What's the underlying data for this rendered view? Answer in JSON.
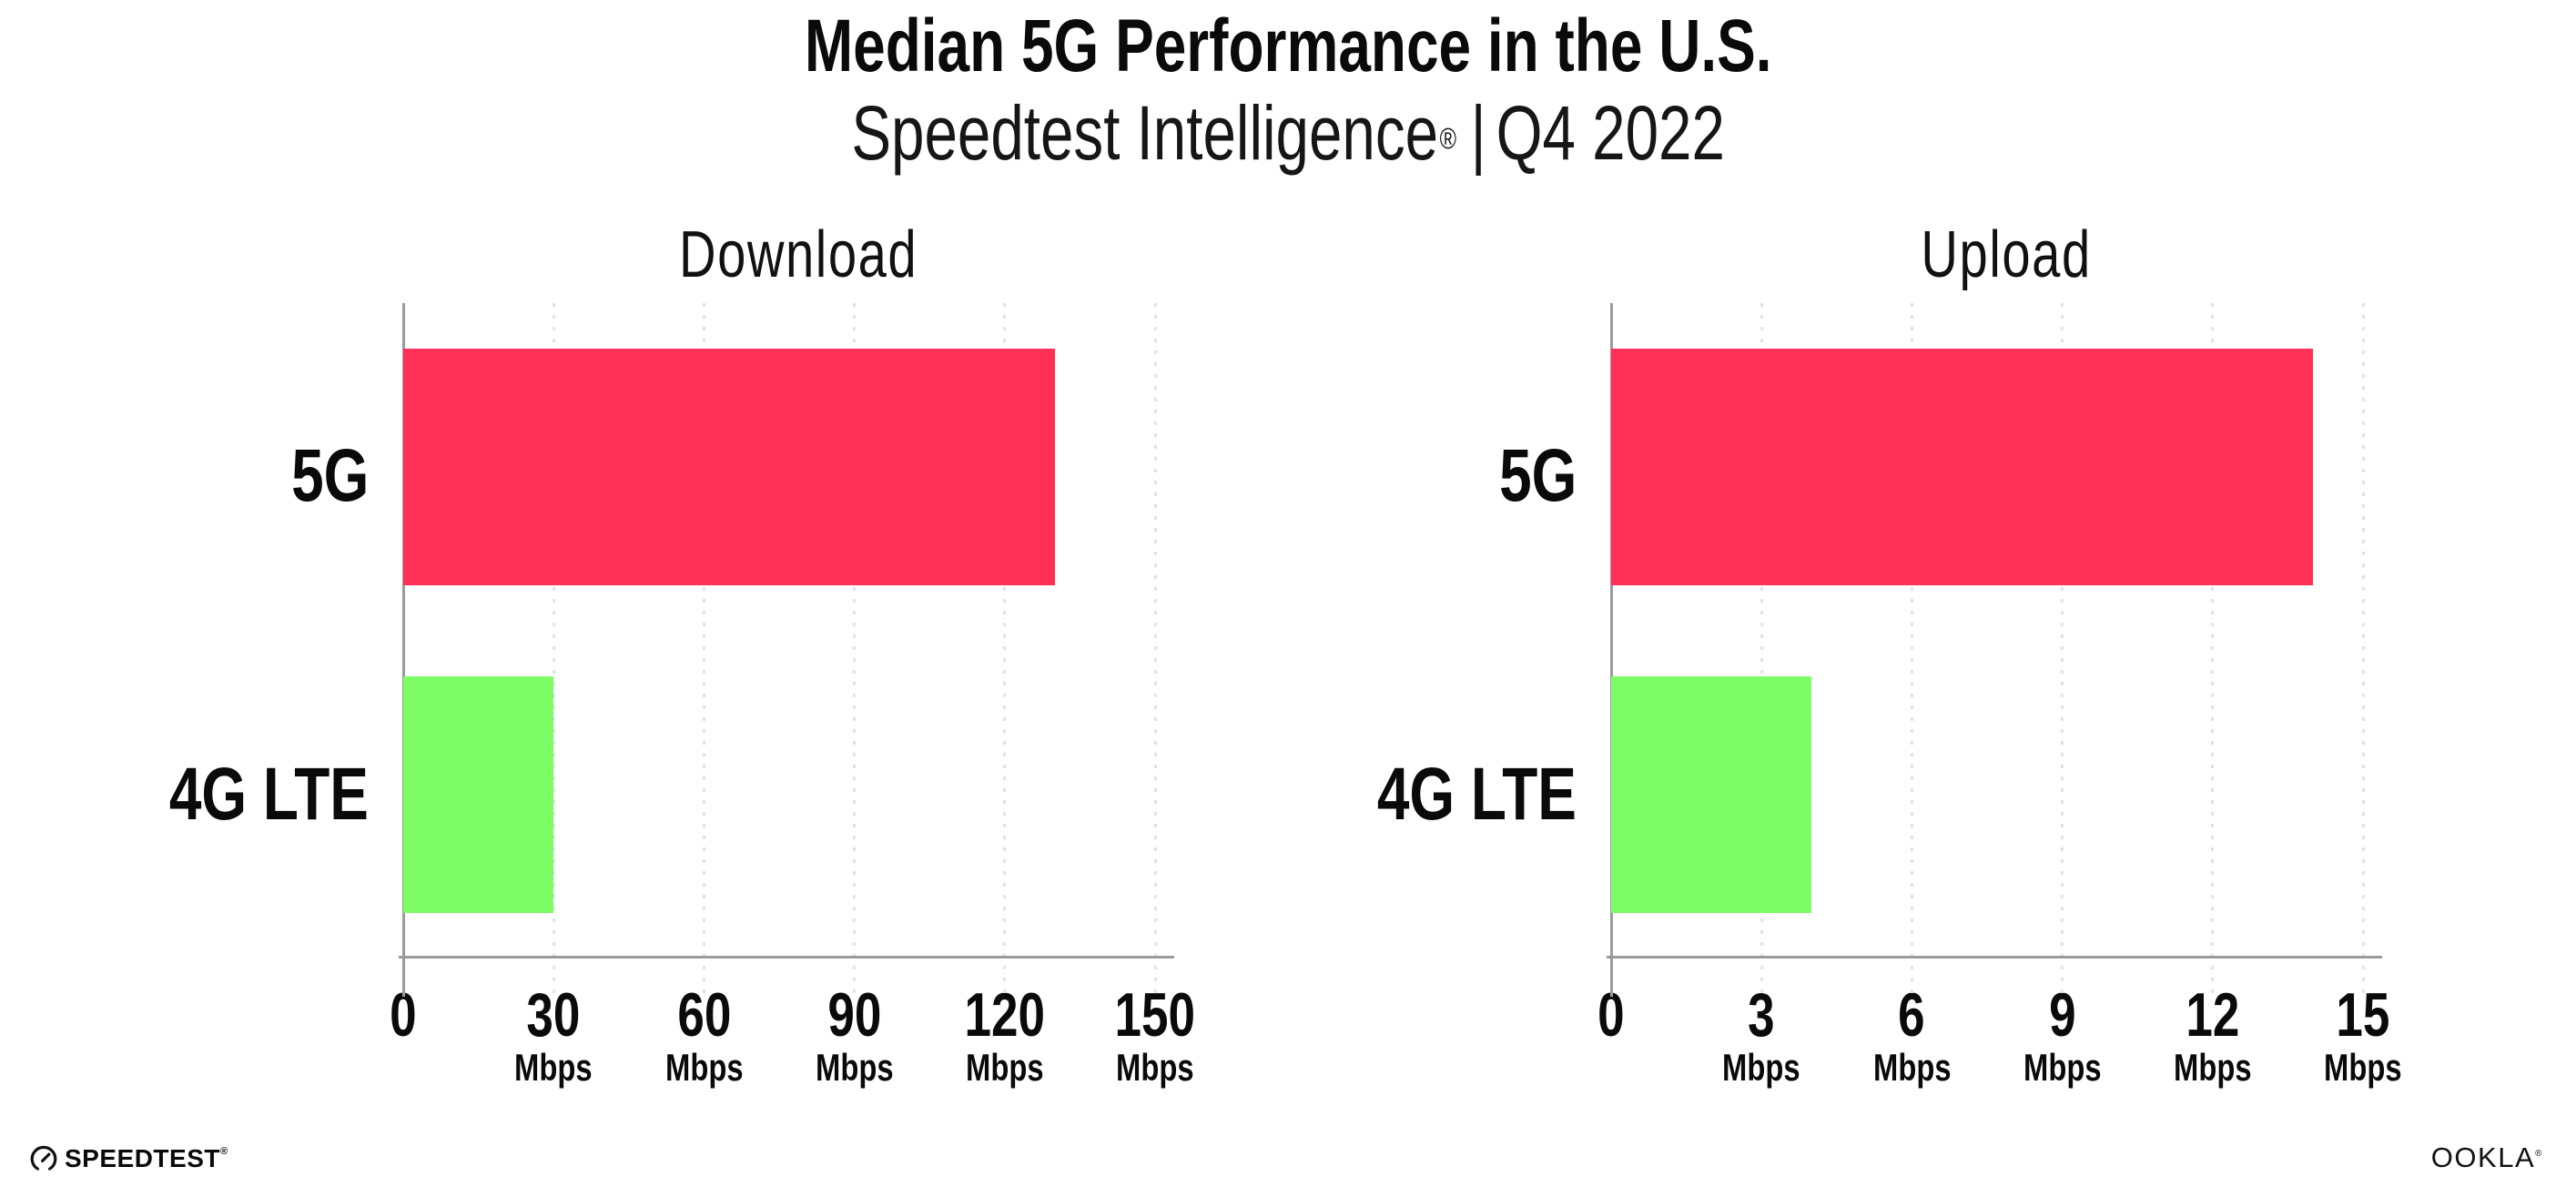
{
  "header": {
    "title": "Median 5G Performance in the U.S.",
    "subtitle_brand": "Speedtest Intelligence",
    "subtitle_reg": "®",
    "subtitle_sep": "|",
    "subtitle_period": "Q4 2022"
  },
  "colors": {
    "bar_5g": "#ff3056",
    "bar_4g_lte": "#7efc66",
    "axis": "#9b9b9b",
    "gridline": "#dfe1ed",
    "text": "#0a0a0a"
  },
  "chart_data": [
    {
      "type": "bar",
      "orientation": "horizontal",
      "title": "Download",
      "categories": [
        "5G",
        "4G LTE"
      ],
      "values": [
        130,
        30
      ],
      "unit": "Mbps",
      "xlim": [
        0,
        150
      ],
      "xticks": [
        0,
        30,
        60,
        90,
        120,
        150
      ],
      "grid": "vertical-dotted",
      "legend": "none",
      "bar_colors": [
        "#ff3056",
        "#7efc66"
      ]
    },
    {
      "type": "bar",
      "orientation": "horizontal",
      "title": "Upload",
      "categories": [
        "5G",
        "4G LTE"
      ],
      "values": [
        14,
        4
      ],
      "unit": "Mbps",
      "xlim": [
        0,
        15
      ],
      "xticks": [
        0,
        3,
        6,
        9,
        12,
        15
      ],
      "grid": "vertical-dotted",
      "legend": "none",
      "bar_colors": [
        "#ff3056",
        "#7efc66"
      ]
    }
  ],
  "footer": {
    "speedtest_label": "SPEEDTEST",
    "speedtest_reg": "®",
    "ookla_label": "OOKLA",
    "ookla_reg": "®"
  }
}
